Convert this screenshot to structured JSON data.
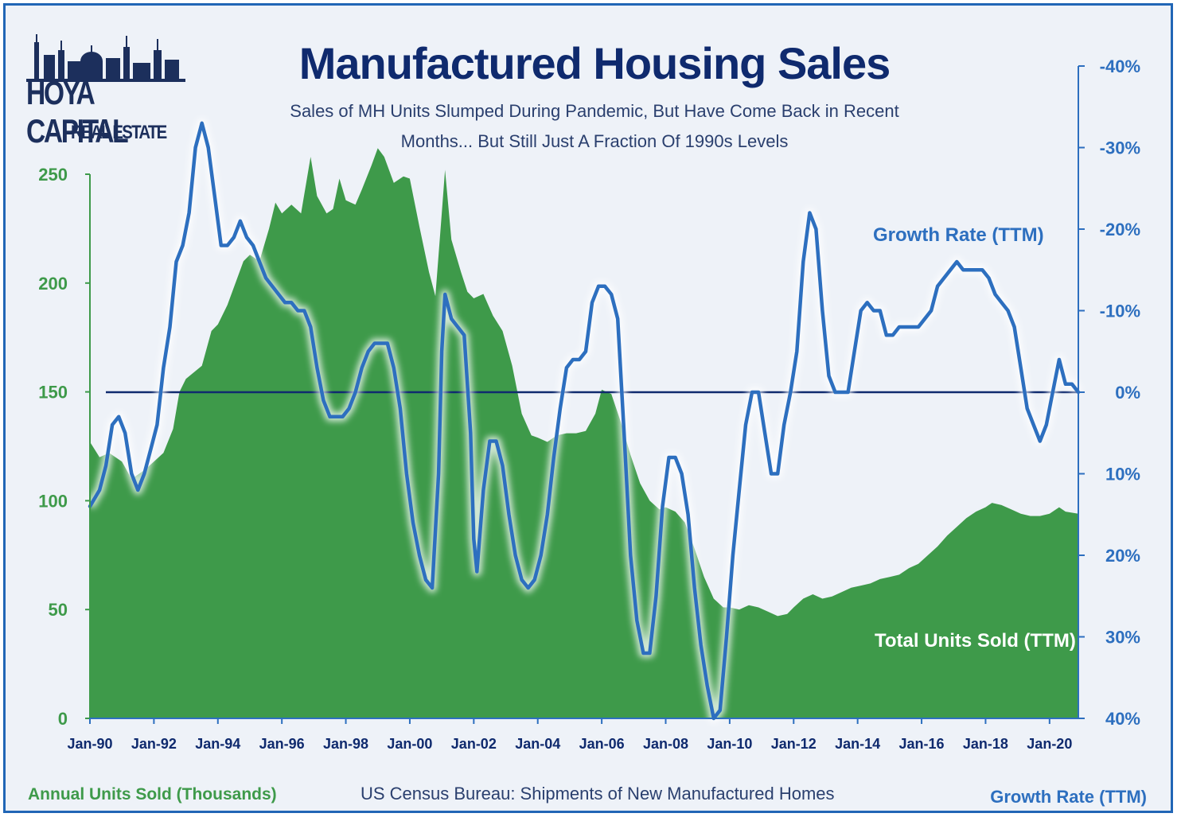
{
  "header": {
    "title": "Manufactured Housing Sales",
    "subtitle_line1": "Sales of MH Units Slumped During Pandemic, But Have Come Back in Recent",
    "subtitle_line2": "Months... But Still Just A Fraction Of 1990s Levels"
  },
  "logo": {
    "main": "HOYA CAPITAL",
    "sub": "REAL ESTATE"
  },
  "footer": {
    "left_axis_title": "Annual Units Sold (Thousands)",
    "right_axis_title": "Growth Rate (TTM)",
    "source": "US Census Bureau: Shipments of New Manufactured Homes"
  },
  "colors": {
    "area_fill": "#3e9a4a",
    "line": "#2d6fbf",
    "left_axis": "#3e9a4a",
    "right_axis": "#2d6fbf",
    "zero_line": "#0f2a6e"
  },
  "chart_data": {
    "type": "area",
    "x_tick_labels": [
      "Jan-90",
      "Jan-92",
      "Jan-94",
      "Jan-96",
      "Jan-98",
      "Jan-00",
      "Jan-02",
      "Jan-04",
      "Jan-06",
      "Jan-08",
      "Jan-10",
      "Jan-12",
      "Jan-14",
      "Jan-16",
      "Jan-18",
      "Jan-20"
    ],
    "x_range": [
      1990.0,
      2020.9
    ],
    "y_left_ticks": [
      "0",
      "50",
      "100",
      "150",
      "200",
      "250"
    ],
    "y_left_range": [
      0,
      250
    ],
    "y_right_ticks": [
      "-40%",
      "-30%",
      "-20%",
      "-10%",
      "0%",
      "10%",
      "20%",
      "30%",
      "40%"
    ],
    "y_right_range": [
      -40,
      40
    ],
    "series": [
      {
        "name": "Total Units Sold (TTM)",
        "axis": "left",
        "points": [
          [
            1990.0,
            127
          ],
          [
            1990.3,
            120
          ],
          [
            1990.6,
            122
          ],
          [
            1991.0,
            118
          ],
          [
            1991.3,
            110
          ],
          [
            1991.7,
            114
          ],
          [
            1992.0,
            118
          ],
          [
            1992.3,
            122
          ],
          [
            1992.6,
            133
          ],
          [
            1992.8,
            150
          ],
          [
            1993.0,
            156
          ],
          [
            1993.5,
            162
          ],
          [
            1993.8,
            178
          ],
          [
            1994.0,
            181
          ],
          [
            1994.3,
            190
          ],
          [
            1994.6,
            202
          ],
          [
            1994.8,
            210
          ],
          [
            1995.0,
            213
          ],
          [
            1995.3,
            210
          ],
          [
            1995.6,
            225
          ],
          [
            1995.8,
            237
          ],
          [
            1996.0,
            232
          ],
          [
            1996.3,
            236
          ],
          [
            1996.6,
            232
          ],
          [
            1996.9,
            258
          ],
          [
            1997.1,
            240
          ],
          [
            1997.4,
            232
          ],
          [
            1997.6,
            234
          ],
          [
            1997.8,
            248
          ],
          [
            1998.0,
            238
          ],
          [
            1998.3,
            236
          ],
          [
            1998.5,
            243
          ],
          [
            1998.8,
            254
          ],
          [
            1999.0,
            262
          ],
          [
            1999.2,
            258
          ],
          [
            1999.5,
            246
          ],
          [
            1999.8,
            249
          ],
          [
            2000.0,
            248
          ],
          [
            2000.3,
            226
          ],
          [
            2000.6,
            205
          ],
          [
            2000.8,
            194
          ],
          [
            2001.0,
            232
          ],
          [
            2001.1,
            252
          ],
          [
            2001.3,
            220
          ],
          [
            2001.6,
            205
          ],
          [
            2001.8,
            196
          ],
          [
            2002.0,
            193
          ],
          [
            2002.3,
            195
          ],
          [
            2002.6,
            185
          ],
          [
            2002.9,
            178
          ],
          [
            2003.2,
            162
          ],
          [
            2003.5,
            140
          ],
          [
            2003.8,
            130
          ],
          [
            2004.0,
            129
          ],
          [
            2004.3,
            127
          ],
          [
            2004.6,
            130
          ],
          [
            2004.9,
            131
          ],
          [
            2005.2,
            131
          ],
          [
            2005.5,
            132
          ],
          [
            2005.8,
            140
          ],
          [
            2006.0,
            151
          ],
          [
            2006.3,
            149
          ],
          [
            2006.6,
            136
          ],
          [
            2006.9,
            121
          ],
          [
            2007.2,
            108
          ],
          [
            2007.5,
            100
          ],
          [
            2007.8,
            96
          ],
          [
            2008.0,
            97
          ],
          [
            2008.3,
            95
          ],
          [
            2008.6,
            90
          ],
          [
            2008.9,
            78
          ],
          [
            2009.2,
            65
          ],
          [
            2009.5,
            55
          ],
          [
            2009.8,
            51
          ],
          [
            2010.0,
            51
          ],
          [
            2010.3,
            50
          ],
          [
            2010.6,
            52
          ],
          [
            2010.9,
            51
          ],
          [
            2011.2,
            49
          ],
          [
            2011.5,
            47
          ],
          [
            2011.8,
            48
          ],
          [
            2012.0,
            51
          ],
          [
            2012.3,
            55
          ],
          [
            2012.6,
            57
          ],
          [
            2012.9,
            55
          ],
          [
            2013.2,
            56
          ],
          [
            2013.5,
            58
          ],
          [
            2013.8,
            60
          ],
          [
            2014.1,
            61
          ],
          [
            2014.4,
            62
          ],
          [
            2014.7,
            64
          ],
          [
            2015.0,
            65
          ],
          [
            2015.3,
            66
          ],
          [
            2015.6,
            69
          ],
          [
            2015.9,
            71
          ],
          [
            2016.2,
            75
          ],
          [
            2016.5,
            79
          ],
          [
            2016.8,
            84
          ],
          [
            2017.1,
            88
          ],
          [
            2017.4,
            92
          ],
          [
            2017.7,
            95
          ],
          [
            2018.0,
            97
          ],
          [
            2018.2,
            99
          ],
          [
            2018.5,
            98
          ],
          [
            2018.8,
            96
          ],
          [
            2019.1,
            94
          ],
          [
            2019.4,
            93
          ],
          [
            2019.7,
            93
          ],
          [
            2020.0,
            94
          ],
          [
            2020.3,
            97
          ],
          [
            2020.5,
            95
          ],
          [
            2020.9,
            94
          ]
        ]
      },
      {
        "name": "Growth Rate (TTM)",
        "axis": "right",
        "points": [
          [
            1990.0,
            -14
          ],
          [
            1990.3,
            -12
          ],
          [
            1990.5,
            -9
          ],
          [
            1990.7,
            -4
          ],
          [
            1990.9,
            -3
          ],
          [
            1991.1,
            -5
          ],
          [
            1991.3,
            -10
          ],
          [
            1991.5,
            -12
          ],
          [
            1991.7,
            -10
          ],
          [
            1991.9,
            -7
          ],
          [
            1992.1,
            -4
          ],
          [
            1992.3,
            3
          ],
          [
            1992.5,
            8
          ],
          [
            1992.7,
            16
          ],
          [
            1992.9,
            18
          ],
          [
            1993.1,
            22
          ],
          [
            1993.3,
            30
          ],
          [
            1993.5,
            33
          ],
          [
            1993.7,
            30
          ],
          [
            1993.9,
            24
          ],
          [
            1994.1,
            18
          ],
          [
            1994.3,
            18
          ],
          [
            1994.5,
            19
          ],
          [
            1994.7,
            21
          ],
          [
            1994.9,
            19
          ],
          [
            1995.1,
            18
          ],
          [
            1995.3,
            16
          ],
          [
            1995.5,
            14
          ],
          [
            1995.7,
            13
          ],
          [
            1995.9,
            12
          ],
          [
            1996.1,
            11
          ],
          [
            1996.3,
            11
          ],
          [
            1996.5,
            10
          ],
          [
            1996.7,
            10
          ],
          [
            1996.9,
            8
          ],
          [
            1997.1,
            3
          ],
          [
            1997.3,
            -1
          ],
          [
            1997.5,
            -3
          ],
          [
            1997.7,
            -3
          ],
          [
            1997.9,
            -3
          ],
          [
            1998.1,
            -2
          ],
          [
            1998.3,
            0
          ],
          [
            1998.5,
            3
          ],
          [
            1998.7,
            5
          ],
          [
            1998.9,
            6
          ],
          [
            1999.1,
            6
          ],
          [
            1999.3,
            6
          ],
          [
            1999.5,
            3
          ],
          [
            1999.7,
            -2
          ],
          [
            1999.9,
            -10
          ],
          [
            2000.1,
            -16
          ],
          [
            2000.3,
            -20
          ],
          [
            2000.5,
            -23
          ],
          [
            2000.7,
            -24
          ],
          [
            2000.9,
            -10
          ],
          [
            2001.0,
            5
          ],
          [
            2001.1,
            12
          ],
          [
            2001.3,
            9
          ],
          [
            2001.5,
            8
          ],
          [
            2001.7,
            7
          ],
          [
            2001.9,
            -5
          ],
          [
            2002.0,
            -18
          ],
          [
            2002.1,
            -22
          ],
          [
            2002.3,
            -12
          ],
          [
            2002.5,
            -6
          ],
          [
            2002.7,
            -6
          ],
          [
            2002.9,
            -9
          ],
          [
            2003.1,
            -15
          ],
          [
            2003.3,
            -20
          ],
          [
            2003.5,
            -23
          ],
          [
            2003.7,
            -24
          ],
          [
            2003.9,
            -23
          ],
          [
            2004.1,
            -20
          ],
          [
            2004.3,
            -15
          ],
          [
            2004.5,
            -8
          ],
          [
            2004.7,
            -2
          ],
          [
            2004.9,
            3
          ],
          [
            2005.1,
            4
          ],
          [
            2005.3,
            4
          ],
          [
            2005.5,
            5
          ],
          [
            2005.7,
            11
          ],
          [
            2005.9,
            13
          ],
          [
            2006.1,
            13
          ],
          [
            2006.3,
            12
          ],
          [
            2006.5,
            9
          ],
          [
            2006.7,
            -5
          ],
          [
            2006.9,
            -20
          ],
          [
            2007.1,
            -28
          ],
          [
            2007.3,
            -32
          ],
          [
            2007.5,
            -32
          ],
          [
            2007.7,
            -25
          ],
          [
            2007.9,
            -14
          ],
          [
            2008.1,
            -8
          ],
          [
            2008.3,
            -8
          ],
          [
            2008.5,
            -10
          ],
          [
            2008.7,
            -15
          ],
          [
            2008.9,
            -24
          ],
          [
            2009.1,
            -31
          ],
          [
            2009.3,
            -36
          ],
          [
            2009.5,
            -40
          ],
          [
            2009.7,
            -39
          ],
          [
            2009.9,
            -30
          ],
          [
            2010.1,
            -20
          ],
          [
            2010.3,
            -12
          ],
          [
            2010.5,
            -4
          ],
          [
            2010.7,
            0
          ],
          [
            2010.9,
            0
          ],
          [
            2011.1,
            -5
          ],
          [
            2011.3,
            -10
          ],
          [
            2011.5,
            -10
          ],
          [
            2011.7,
            -4
          ],
          [
            2011.9,
            0
          ],
          [
            2012.1,
            5
          ],
          [
            2012.3,
            16
          ],
          [
            2012.5,
            22
          ],
          [
            2012.7,
            20
          ],
          [
            2012.9,
            10
          ],
          [
            2013.1,
            2
          ],
          [
            2013.3,
            0
          ],
          [
            2013.5,
            0
          ],
          [
            2013.7,
            0
          ],
          [
            2013.9,
            5
          ],
          [
            2014.1,
            10
          ],
          [
            2014.3,
            11
          ],
          [
            2014.5,
            10
          ],
          [
            2014.7,
            10
          ],
          [
            2014.9,
            7
          ],
          [
            2015.1,
            7
          ],
          [
            2015.3,
            8
          ],
          [
            2015.5,
            8
          ],
          [
            2015.7,
            8
          ],
          [
            2015.9,
            8
          ],
          [
            2016.1,
            9
          ],
          [
            2016.3,
            10
          ],
          [
            2016.5,
            13
          ],
          [
            2016.7,
            14
          ],
          [
            2016.9,
            15
          ],
          [
            2017.1,
            16
          ],
          [
            2017.3,
            15
          ],
          [
            2017.5,
            15
          ],
          [
            2017.7,
            15
          ],
          [
            2017.9,
            15
          ],
          [
            2018.1,
            14
          ],
          [
            2018.3,
            12
          ],
          [
            2018.5,
            11
          ],
          [
            2018.7,
            10
          ],
          [
            2018.9,
            8
          ],
          [
            2019.1,
            3
          ],
          [
            2019.3,
            -2
          ],
          [
            2019.5,
            -4
          ],
          [
            2019.7,
            -6
          ],
          [
            2019.9,
            -4
          ],
          [
            2020.1,
            0
          ],
          [
            2020.3,
            4
          ],
          [
            2020.5,
            1
          ],
          [
            2020.7,
            1
          ],
          [
            2020.9,
            0
          ]
        ]
      }
    ],
    "reference_line": {
      "axis": "right",
      "value": 0
    }
  }
}
